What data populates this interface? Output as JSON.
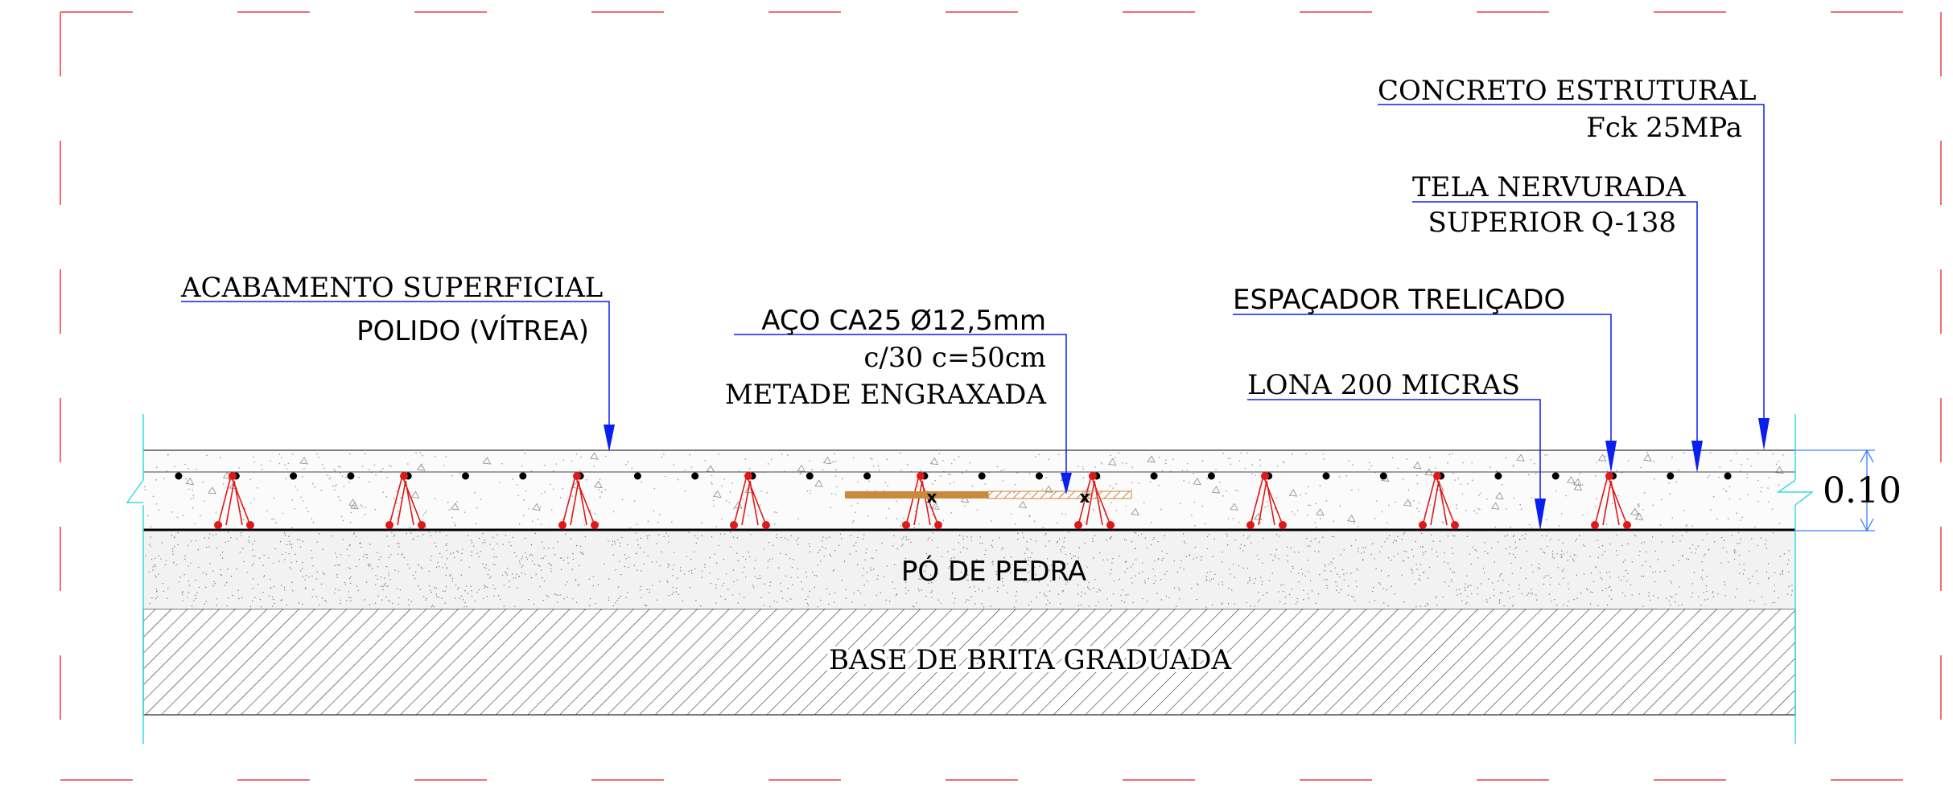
{
  "callouts": {
    "concreto": {
      "line1": "CONCRETO ESTRUTURAL",
      "line2": "Fck 25MPa"
    },
    "tela": {
      "line1": "TELA NERVURADA",
      "line2": "SUPERIOR Q-138"
    },
    "espacador": {
      "line1": "ESPAÇADOR TRELIÇADO"
    },
    "lona": {
      "line1": "LONA 200 MICRAS"
    },
    "aco": {
      "line1": "AÇO CA25 Ø12,5mm",
      "line2": "c/30 c=50cm",
      "line3": "METADE ENGRAXADA"
    },
    "acabamento": {
      "line1": "ACABAMENTO SUPERFICIAL",
      "line2": "POLIDO (VÍTREA)"
    }
  },
  "layers": {
    "po_de_pedra": "PÓ DE PEDRA",
    "base_brita": "BASE DE BRITA GRADUADA"
  },
  "dimension": {
    "thickness": "0.10"
  },
  "colors": {
    "frame_dash": "#e8414a",
    "cyan": "#3fd9e0",
    "leader": "#0a1ef0",
    "rebar": "#e01818",
    "dowel": "#c98a3a"
  }
}
